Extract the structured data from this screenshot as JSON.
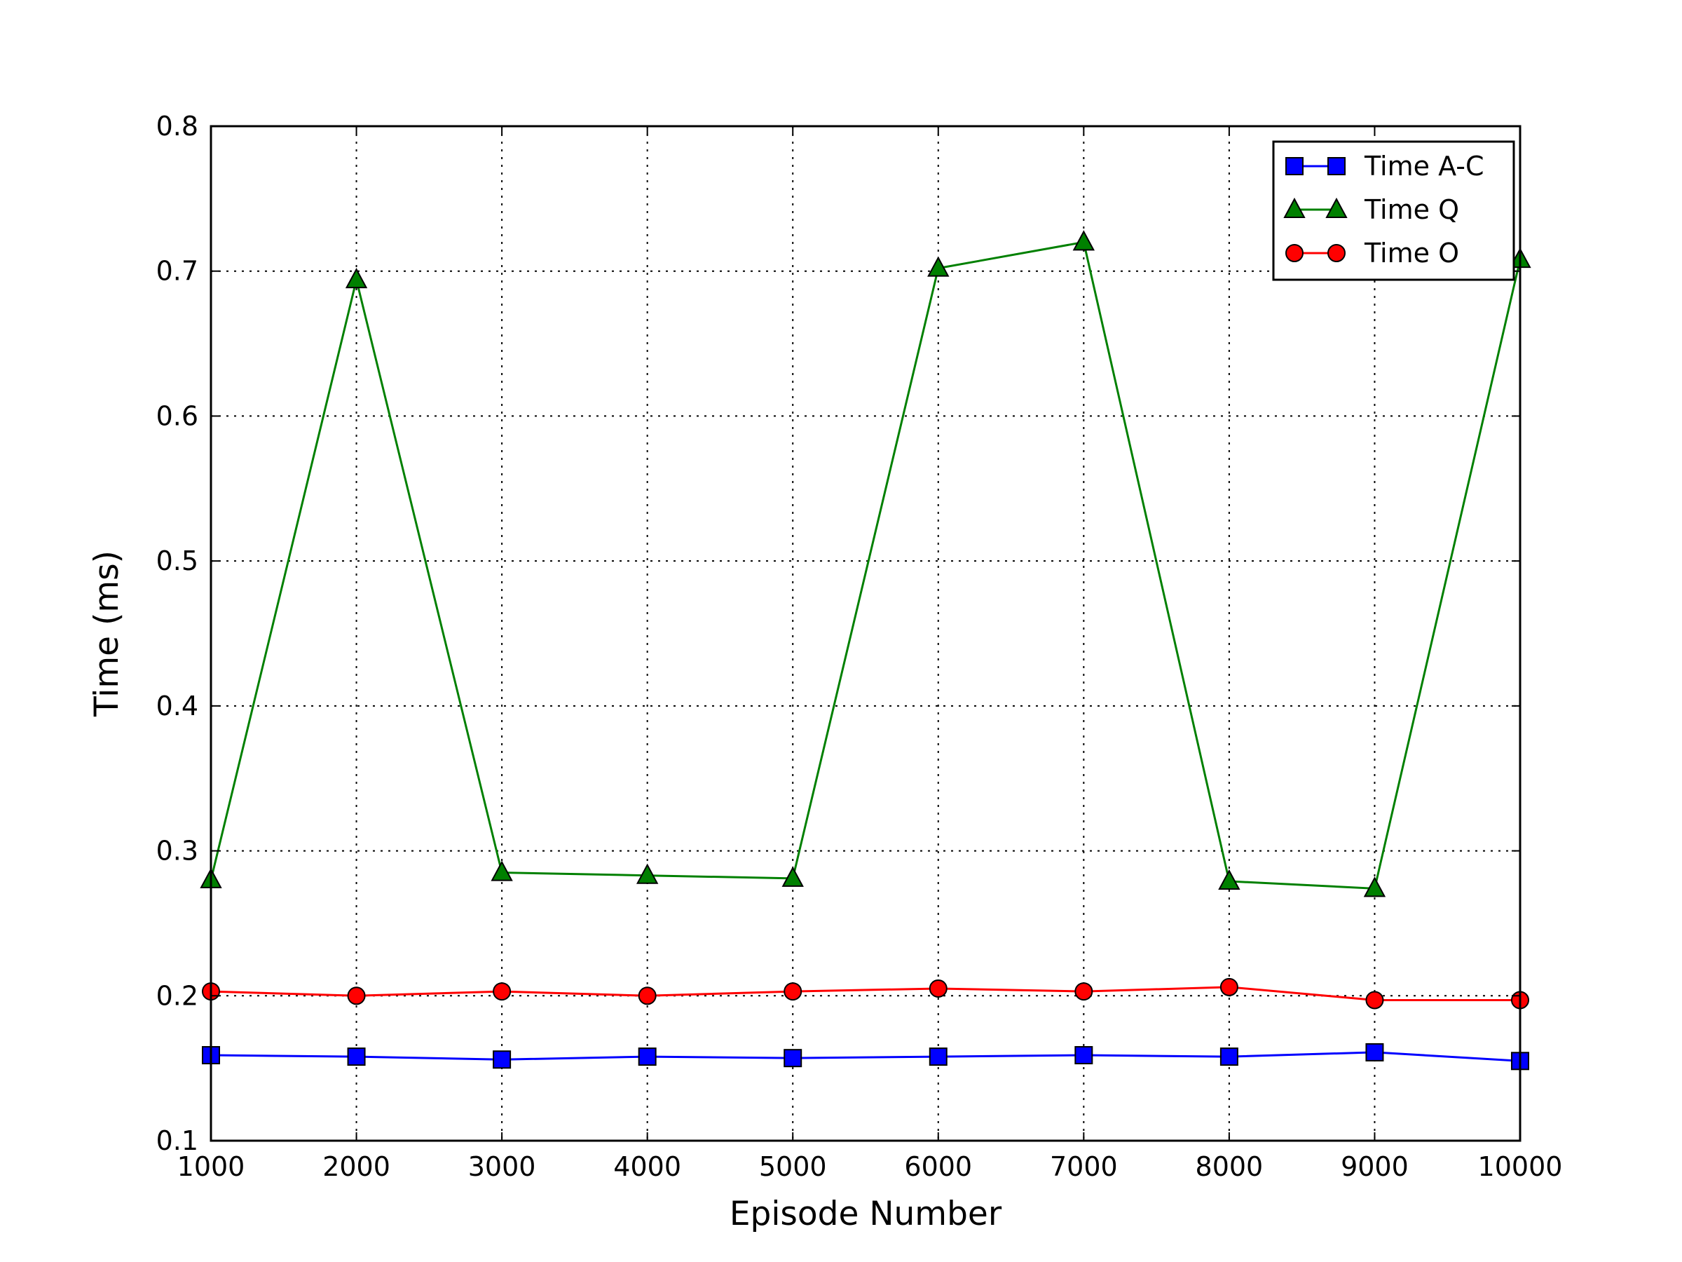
{
  "chart_data": {
    "type": "line",
    "title": "",
    "xlabel": "Episode Number",
    "ylabel": "Time (ms)",
    "xlim": [
      1000,
      10000
    ],
    "ylim": [
      0.1,
      0.8
    ],
    "xticks": [
      "1000",
      "2000",
      "3000",
      "4000",
      "5000",
      "6000",
      "7000",
      "8000",
      "9000",
      "10000"
    ],
    "yticks": [
      "0.1",
      "0.2",
      "0.3",
      "0.4",
      "0.5",
      "0.6",
      "0.7",
      "0.8"
    ],
    "grid": true,
    "legend_position": "top-right",
    "x": [
      1000,
      2000,
      3000,
      4000,
      5000,
      6000,
      7000,
      8000,
      9000,
      10000
    ],
    "series": [
      {
        "name": "Time A-C",
        "color": "#0000ff",
        "marker": "square",
        "values": [
          0.159,
          0.158,
          0.156,
          0.158,
          0.157,
          0.158,
          0.159,
          0.158,
          0.161,
          0.155
        ]
      },
      {
        "name": "Time Q",
        "color": "#008000",
        "marker": "triangle",
        "values": [
          0.28,
          0.694,
          0.285,
          0.283,
          0.281,
          0.702,
          0.72,
          0.279,
          0.274,
          0.708
        ]
      },
      {
        "name": "Time O",
        "color": "#ff0000",
        "marker": "circle",
        "values": [
          0.203,
          0.2,
          0.203,
          0.2,
          0.203,
          0.205,
          0.203,
          0.206,
          0.197,
          0.197
        ]
      }
    ]
  }
}
